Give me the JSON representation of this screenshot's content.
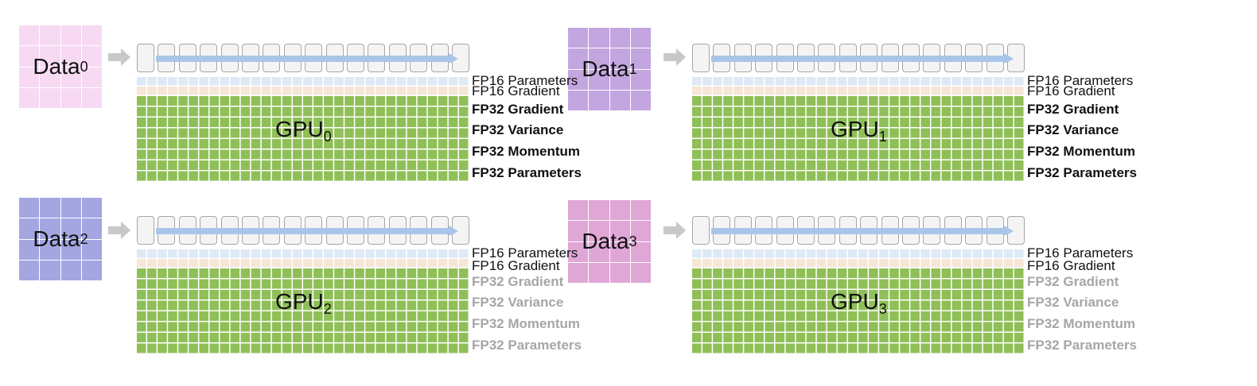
{
  "colors": {
    "fp16_params": "#dde9f5",
    "fp16_grad": "#f6e6d6",
    "fp32": "#8fbf57",
    "layer_fill": "#f4f4f4",
    "layer_border": "#a6a6a6",
    "flow_arrow": "#a9c6e8",
    "input_arrow": "#c8c8c8",
    "dim_text": "#a6a6a6"
  },
  "panels": [
    {
      "data_name": "Data",
      "data_sub": "0",
      "data_color": "#f7d9f3",
      "gpu_name": "GPU",
      "gpu_sub": "0",
      "labels": {
        "fp16_params": "FP16 Parameters",
        "fp16_grad": "FP16 Gradient",
        "fp32_grad": "FP32 Gradient",
        "fp32_var": "FP32 Variance",
        "fp32_mom": "FP32 Momentum",
        "fp32_params": "FP32 Parameters"
      },
      "fp32_state": "full"
    },
    {
      "data_name": "Data",
      "data_sub": "1",
      "data_color": "#c3a6e0",
      "gpu_name": "GPU",
      "gpu_sub": "1",
      "labels": {
        "fp16_params": "FP16 Parameters",
        "fp16_grad": "FP16 Gradient",
        "fp32_grad": "FP32 Gradient",
        "fp32_var": "FP32 Variance",
        "fp32_mom": "FP32 Momentum",
        "fp32_params": "FP32 Parameters"
      },
      "fp32_state": "full"
    },
    {
      "data_name": "Data",
      "data_sub": "2",
      "data_color": "#a3a6e1",
      "gpu_name": "GPU",
      "gpu_sub": "2",
      "labels": {
        "fp16_params": "FP16 Parameters",
        "fp16_grad": "FP16 Gradient",
        "fp32_grad": "FP32 Gradient",
        "fp32_var": "FP32 Variance",
        "fp32_mom": "FP32 Momentum",
        "fp32_params": "FP32 Parameters"
      },
      "fp32_state": "dimmed"
    },
    {
      "data_name": "Data",
      "data_sub": "3",
      "data_color": "#dfa6d6",
      "gpu_name": "GPU",
      "gpu_sub": "3",
      "labels": {
        "fp16_params": "FP16 Parameters",
        "fp16_grad": "FP16 Gradient",
        "fp32_grad": "FP32 Gradient",
        "fp32_var": "FP32 Variance",
        "fp32_mom": "FP32 Momentum",
        "fp32_params": "FP32 Parameters"
      },
      "fp32_state": "dimmed"
    }
  ]
}
